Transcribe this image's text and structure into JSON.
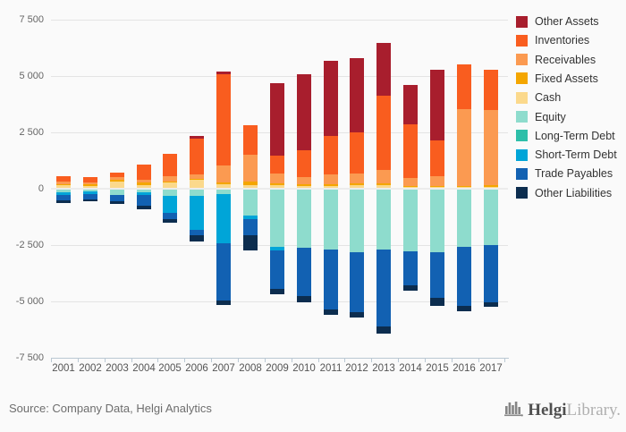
{
  "chart_data": {
    "type": "bar",
    "stacked": true,
    "title": "",
    "xlabel": "",
    "ylabel": "",
    "ylim": [
      -7500,
      7500
    ],
    "grid": true,
    "legend_position": "top-right",
    "y_ticks": [
      {
        "value": 7500,
        "label": "7 500"
      },
      {
        "value": 5000,
        "label": "5 000"
      },
      {
        "value": 2500,
        "label": "2 500"
      },
      {
        "value": 0,
        "label": "0"
      },
      {
        "value": -2500,
        "label": "-2 500"
      },
      {
        "value": -5000,
        "label": "-5 000"
      },
      {
        "value": -7500,
        "label": "-7 500"
      }
    ],
    "categories": [
      "2001",
      "2002",
      "2003",
      "2004",
      "2005",
      "2006",
      "2007",
      "2008",
      "2009",
      "2010",
      "2011",
      "2012",
      "2013",
      "2014",
      "2015",
      "2016",
      "2017"
    ],
    "series": [
      {
        "name": "Other Assets",
        "group": "assets",
        "color": "#a81e2d",
        "values": [
          0,
          0,
          0,
          0,
          0,
          110,
          135,
          0,
          3230,
          3360,
          3360,
          3260,
          2370,
          1740,
          3125,
          0,
          0
        ]
      },
      {
        "name": "Inventories",
        "group": "assets",
        "color": "#f95d1f",
        "values": [
          240,
          220,
          190,
          700,
          975,
          1590,
          4040,
          1330,
          800,
          1195,
          1690,
          1845,
          3285,
          2395,
          1570,
          1995,
          1795
        ]
      },
      {
        "name": "Receivables",
        "group": "assets",
        "color": "#fb9a51",
        "values": [
          120,
          100,
          120,
          100,
          265,
          200,
          745,
          1200,
          400,
          295,
          425,
          440,
          600,
          335,
          440,
          3390,
          3330
        ]
      },
      {
        "name": "Fixed Assets",
        "group": "assets",
        "color": "#f4a600",
        "values": [
          40,
          60,
          100,
          120,
          40,
          60,
          105,
          135,
          105,
          80,
          85,
          90,
          90,
          60,
          60,
          60,
          100
        ]
      },
      {
        "name": "Cash",
        "group": "assets",
        "color": "#fbd98c",
        "values": [
          150,
          120,
          300,
          160,
          265,
          380,
          185,
          165,
          150,
          130,
          130,
          140,
          140,
          70,
          70,
          70,
          70
        ]
      },
      {
        "name": "Equity",
        "group": "liabilities",
        "color": "#8edccd",
        "values": [
          -150,
          -135,
          -260,
          -175,
          -320,
          -320,
          -230,
          -1200,
          -2590,
          -2620,
          -2685,
          -2820,
          -2715,
          -2765,
          -2820,
          -2595,
          -2500
        ]
      },
      {
        "name": "Long-Term Debt",
        "group": "liabilities",
        "color": "#2dbfa9",
        "values": [
          0,
          0,
          0,
          0,
          0,
          0,
          0,
          0,
          0,
          0,
          0,
          0,
          0,
          0,
          0,
          0,
          0
        ]
      },
      {
        "name": "Short-Term Debt",
        "group": "liabilities",
        "color": "#00a5d8",
        "values": [
          -120,
          -95,
          0,
          -110,
          -770,
          -1500,
          -2195,
          -130,
          -160,
          0,
          0,
          0,
          0,
          0,
          0,
          0,
          0
        ]
      },
      {
        "name": "Trade Payables",
        "group": "liabilities",
        "color": "#1261b2",
        "values": [
          -240,
          -240,
          -310,
          -450,
          -270,
          -230,
          -2530,
          -720,
          -1690,
          -2130,
          -2660,
          -2660,
          -3390,
          -1515,
          -2020,
          -2620,
          -2555
        ]
      },
      {
        "name": "Other Liabilities",
        "group": "liabilities",
        "color": "#0c2d4f",
        "values": [
          -120,
          -80,
          -90,
          -180,
          -160,
          -280,
          -200,
          -705,
          -240,
          -305,
          -240,
          -225,
          -310,
          -240,
          -345,
          -240,
          -185
        ]
      }
    ]
  },
  "footer": {
    "source": "Source: Company Data, Helgi Analytics",
    "logo_primary": "Helgi",
    "logo_secondary": "Library."
  },
  "colors": {
    "background": "#fafafa",
    "gridline": "#e4e4e4",
    "axis": "#bac8d3"
  }
}
